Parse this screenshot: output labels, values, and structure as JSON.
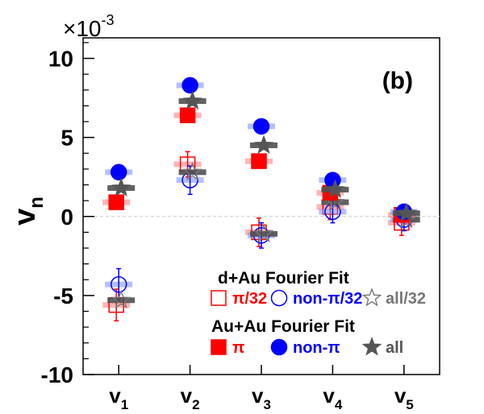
{
  "chart_data": {
    "type": "scatter",
    "panel_label": "(b)",
    "ylabel": {
      "main": "v",
      "sub": "n"
    },
    "yscale_label": {
      "base": "×10",
      "exp": "-3"
    },
    "categories": [
      {
        "main": "v",
        "sub": "1"
      },
      {
        "main": "v",
        "sub": "2"
      },
      {
        "main": "v",
        "sub": "3"
      },
      {
        "main": "v",
        "sub": "4"
      },
      {
        "main": "v",
        "sub": "5"
      }
    ],
    "ylim": [
      -10,
      11.3
    ],
    "yticks": [
      "-10",
      "-5",
      "0",
      "5",
      "10"
    ],
    "ytick_values": [
      -10,
      -5,
      0,
      5,
      10
    ],
    "zero_line": true,
    "legend": {
      "group1_title": "d+Au Fourier Fit",
      "group2_title": "Au+Au Fourier Fit"
    },
    "series": [
      {
        "name": "π/32",
        "group": "dAu",
        "marker": "square",
        "filled": false,
        "color": "#ff0000",
        "values": [
          -5.6,
          3.3,
          -1.0,
          0.6,
          -0.4
        ],
        "errors": [
          1.0,
          0.8,
          0.9,
          0.8,
          0.8
        ]
      },
      {
        "name": "non-π/32",
        "group": "dAu",
        "marker": "circle",
        "filled": false,
        "color": "#0000ff",
        "values": [
          -4.3,
          2.3,
          -1.2,
          0.3,
          -0.2
        ],
        "errors": [
          1.0,
          0.9,
          0.8,
          0.7,
          0.7
        ]
      },
      {
        "name": "all/32",
        "group": "dAu",
        "marker": "star",
        "filled": false,
        "color": "#777777",
        "values": [
          -5.3,
          2.8,
          -1.1,
          0.9,
          -0.2
        ],
        "errors": [
          0,
          0,
          0,
          0,
          0
        ]
      },
      {
        "name": "π",
        "group": "AuAu",
        "marker": "square",
        "filled": true,
        "color": "#ff0000",
        "values": [
          0.9,
          6.4,
          3.5,
          1.5,
          0.1
        ],
        "errors": [
          0,
          0,
          0,
          0,
          0
        ]
      },
      {
        "name": "non-π",
        "group": "AuAu",
        "marker": "circle",
        "filled": true,
        "color": "#0000ff",
        "values": [
          2.8,
          8.3,
          5.7,
          2.3,
          0.3
        ],
        "errors": [
          0,
          0,
          0,
          0,
          0
        ]
      },
      {
        "name": "all",
        "group": "AuAu",
        "marker": "star",
        "filled": true,
        "color": "#555555",
        "values": [
          1.8,
          7.3,
          4.5,
          1.7,
          0.2
        ],
        "errors": [
          0,
          0,
          0,
          0,
          0
        ]
      }
    ]
  }
}
